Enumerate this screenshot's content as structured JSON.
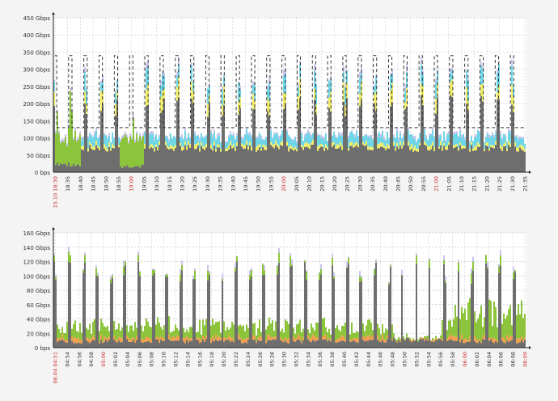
{
  "colors": {
    "background": "#f4f4f4",
    "plot_bg": "#ffffff",
    "grid": "#c8c8d8",
    "axis": "#222222",
    "tick_text": "#333333",
    "highlight_tick": "#cc3333",
    "series_gray": "#6e6e6e",
    "series_green": "#8cc43c",
    "series_yellow": "#f2ee6a",
    "series_cyan": "#6fd6e8",
    "series_orange": "#f0a050",
    "series_lavender": "#c9c4ec",
    "threshold": "#333333"
  },
  "chart_data": [
    {
      "type": "area",
      "stacked": true,
      "y_ticks": [
        "0 bps",
        "50 Gbps",
        "100 Gbps",
        "150 Gbps",
        "200 Gbps",
        "250 Gbps",
        "300 Gbps",
        "350 Gbps",
        "400 Gbps",
        "450 Gbps"
      ],
      "ylim": [
        0,
        450
      ],
      "y_unit": "Gbps",
      "grid": true,
      "x_ticks": [
        "15.10 18:30",
        "18:35",
        "18:40",
        "18:45",
        "18:50",
        "18:55",
        "19:00",
        "19:05",
        "19:10",
        "19:15",
        "19:20",
        "19:25",
        "19:30",
        "19:35",
        "19:40",
        "19:45",
        "19:50",
        "19:55",
        "20:00",
        "20:05",
        "20:10",
        "20:15",
        "20:20",
        "20:25",
        "20:30",
        "20:35",
        "20:40",
        "20:45",
        "20:50",
        "20:55",
        "21:00",
        "21:05",
        "21:10",
        "21:15",
        "21:20",
        "21:25",
        "21:30",
        "21:35"
      ],
      "highlight_ticks": [
        "15.10 18:30",
        "19:00",
        "20:00",
        "21:00"
      ],
      "bursts": 31,
      "baseline": {
        "gray": 70,
        "yellow": 10,
        "cyan": 25,
        "lavender": 10
      },
      "peak": {
        "gray": 215,
        "yellow": 40,
        "cyan": 45,
        "lavender": 20
      },
      "threshold": {
        "high": 340,
        "low": 130
      },
      "anomalies": [
        {
          "from": "15.10 18:30",
          "to": "18:40",
          "green": 80,
          "gray": 25
        },
        {
          "from": "18:55",
          "to": "19:05",
          "green": 75,
          "gray": 20
        }
      ]
    },
    {
      "type": "area",
      "stacked": true,
      "y_ticks": [
        "0 bps",
        "20 Gbps",
        "40 Gbps",
        "60 Gbps",
        "80 Gbps",
        "100 Gbps",
        "120 Gbps",
        "140 Gbps",
        "160 Gbps"
      ],
      "ylim": [
        0,
        160
      ],
      "y_unit": "Gbps",
      "grid": true,
      "x_ticks": [
        "08.04 04:51",
        "04:54",
        "04:56",
        "04:58",
        "05:00",
        "05:02",
        "05:04",
        "05:06",
        "05:08",
        "05:10",
        "05:12",
        "05:14",
        "05:16",
        "05:18",
        "05:20",
        "05:22",
        "05:24",
        "05:26",
        "05:28",
        "05:30",
        "05:32",
        "05:34",
        "05:36",
        "05:38",
        "05:40",
        "05:42",
        "05:44",
        "05:46",
        "05:48",
        "05:50",
        "05:52",
        "05:54",
        "05:56",
        "05:58",
        "06:00",
        "06:02",
        "06:04",
        "06:06",
        "06:08",
        "06:09"
      ],
      "highlight_ticks": [
        "08.04 04:51",
        "05:00",
        "06:00",
        "06:09"
      ],
      "bursts": 34,
      "baseline": {
        "gray": 10,
        "orange": 4,
        "green": 22
      },
      "peak": {
        "gray": 110,
        "green": 15,
        "lavender": 8
      },
      "quiet_zone": {
        "from": "05:48",
        "to": "05:56",
        "gray": 12
      },
      "green_zone": {
        "from": "05:58",
        "to": "06:09",
        "green": 45
      }
    }
  ]
}
